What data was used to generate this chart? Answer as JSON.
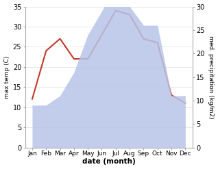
{
  "months": [
    "Jan",
    "Feb",
    "Mar",
    "Apr",
    "May",
    "Jun",
    "Jul",
    "Aug",
    "Sep",
    "Oct",
    "Nov",
    "Dec"
  ],
  "temperature": [
    12,
    24,
    27,
    22,
    22,
    28,
    34,
    33,
    27,
    26,
    13,
    11
  ],
  "precipitation": [
    9,
    9,
    11,
    16,
    24,
    29,
    35,
    30,
    26,
    26,
    11,
    11
  ],
  "temp_color": "#c0392b",
  "precip_color": "#b8c4e8",
  "temp_ylim": [
    0,
    35
  ],
  "precip_ylim": [
    0,
    30
  ],
  "temp_yticks": [
    0,
    5,
    10,
    15,
    20,
    25,
    30,
    35
  ],
  "precip_yticks": [
    0,
    5,
    10,
    15,
    20,
    25,
    30
  ],
  "xlabel": "date (month)",
  "ylabel_left": "max temp (C)",
  "ylabel_right": "med. precipitation (kg/m2)",
  "bg_color": "#ffffff",
  "spine_color": "#aaaaaa",
  "grid_color": "#dddddd"
}
